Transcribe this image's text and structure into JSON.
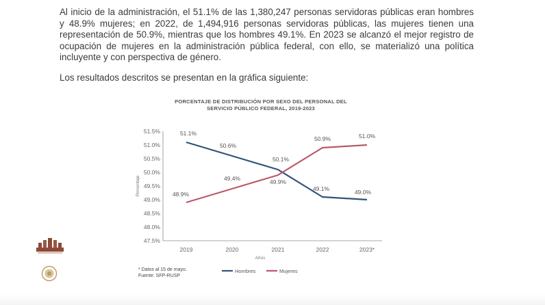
{
  "document": {
    "paragraph": "Al inicio de la administración, el 51.1% de las 1,380,247 personas servidoras públicas eran hombres y 48.9% mujeres; en 2022, de 1,494,916 personas servidoras públicas, las mujeres tienen una representación de 50.9%, mientras que los hombres 49.1%. En 2023 se alcanzó el mejor registro de ocupación de mujeres en la administración pública federal, con ello, se materializó una política incluyente y con perspectiva de género.",
    "lead": "Los resultados descritos se presentan en la gráfica siguiente:"
  },
  "chart_data": {
    "type": "line",
    "title_lines": [
      "PORCENTAJE DE DISTRIBUCIÓN POR SEXO DEL PERSONAL DEL",
      "SERVICIO PÚBLICO FEDERAL, 2019-2023"
    ],
    "categories": [
      "2019",
      "2020",
      "2021",
      "2022",
      "2023*"
    ],
    "xlabel": "Años",
    "ylabel": "Porcentaje",
    "ylim": [
      47.5,
      51.5
    ],
    "yticks": [
      51.5,
      51.0,
      50.5,
      50.0,
      49.5,
      49.0,
      48.5,
      48.0,
      47.5
    ],
    "ytick_labels": [
      "51.5%",
      "51.0%",
      "50.5%",
      "50.0%",
      "49.5%",
      "49.0%",
      "48.5%",
      "48.0%",
      "47.5%"
    ],
    "grid": false,
    "series": [
      {
        "name": "Hombres",
        "color": "#2f5377",
        "values": [
          51.1,
          50.6,
          50.1,
          49.1,
          49.0
        ],
        "labels": [
          "51.1%",
          "50.6%",
          "50.1%",
          "49.1%",
          "49.0%"
        ]
      },
      {
        "name": "Mujeres",
        "color": "#b9586a",
        "values": [
          48.9,
          49.4,
          49.9,
          50.9,
          51.0
        ],
        "labels": [
          "48.9%",
          "49.4%",
          "49.9%",
          "50.9%",
          "51.0%"
        ]
      }
    ],
    "notes": [
      "* Datos al 15 de mayo.",
      "Fuente: SFP-RUSP"
    ],
    "legend_position": "bottom"
  },
  "colors": {
    "text": "#3a3a3a",
    "axis": "#8a8a8a",
    "logo": "#8c4a3a",
    "seal": "#b99a5f"
  }
}
